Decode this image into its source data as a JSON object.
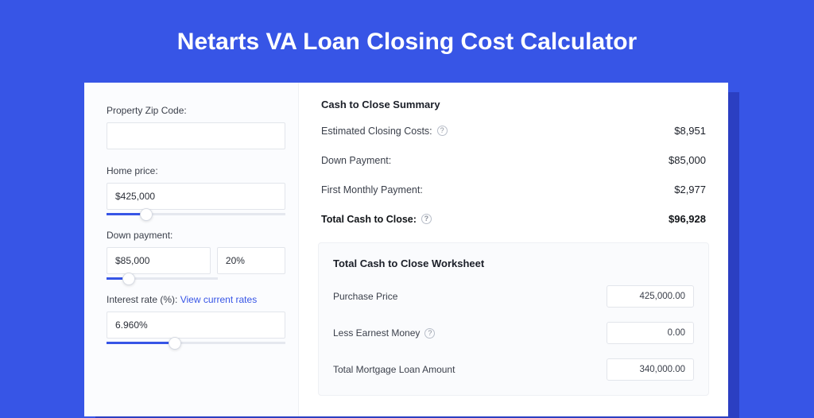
{
  "colors": {
    "page_bg": "#3755e6",
    "card_bg": "#ffffff",
    "card_shadow": "#2b3fc2",
    "left_bg": "#fbfcfe",
    "border": "#e2e5eb",
    "text_primary": "#1b1f28",
    "text_secondary": "#3a3f4a",
    "accent": "#3755e6"
  },
  "title": "Netarts VA Loan Closing Cost Calculator",
  "form": {
    "zip": {
      "label": "Property Zip Code:",
      "value": ""
    },
    "home_price": {
      "label": "Home price:",
      "value": "$425,000",
      "slider_pct": 22
    },
    "down_payment": {
      "label": "Down payment:",
      "amount": "$85,000",
      "percent": "20%",
      "slider_pct": 20
    },
    "interest": {
      "label_prefix": "Interest rate (%): ",
      "link_text": "View current rates",
      "value": "6.960%",
      "slider_pct": 38
    }
  },
  "summary": {
    "title": "Cash to Close Summary",
    "rows": [
      {
        "label": "Estimated Closing Costs:",
        "value": "$8,951",
        "help": true
      },
      {
        "label": "Down Payment:",
        "value": "$85,000",
        "help": false
      },
      {
        "label": "First Monthly Payment:",
        "value": "$2,977",
        "help": false
      }
    ],
    "total": {
      "label": "Total Cash to Close:",
      "value": "$96,928",
      "help": true
    }
  },
  "worksheet": {
    "title": "Total Cash to Close Worksheet",
    "rows": [
      {
        "label": "Purchase Price",
        "value": "425,000.00",
        "help": false
      },
      {
        "label": "Less Earnest Money",
        "value": "0.00",
        "help": true
      },
      {
        "label": "Total Mortgage Loan Amount",
        "value": "340,000.00",
        "help": false
      }
    ]
  }
}
